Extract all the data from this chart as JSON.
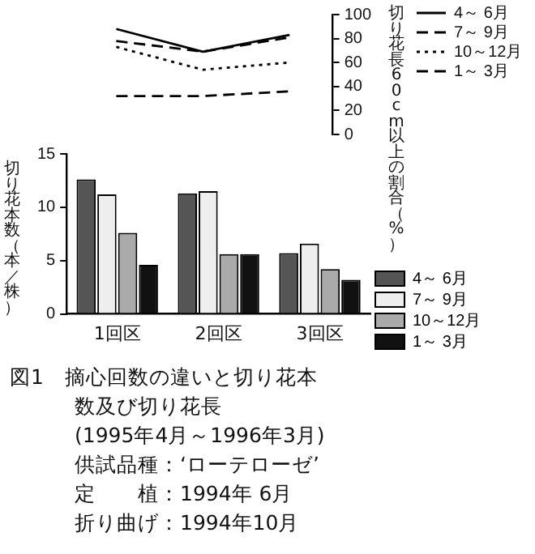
{
  "chart_data": [
    {
      "type": "line",
      "ylabel": "切り花長60cm以上の割合（%）",
      "categories": [
        null,
        null,
        null
      ],
      "series": [
        {
          "name": "4～ 6月",
          "color": "#000000",
          "line_style": "solid",
          "values": [
            88,
            69,
            83
          ]
        },
        {
          "name": "7～ 9月",
          "color": "#000000",
          "line_style": "dashed",
          "values": [
            32,
            32,
            36
          ]
        },
        {
          "name": "10～12月",
          "color": "#000000",
          "line_style": "dotted",
          "values": [
            73,
            54,
            60
          ]
        },
        {
          "name": "1～ 3月",
          "color": "#000000",
          "line_style": "dashed",
          "values": [
            78,
            69,
            81
          ]
        }
      ],
      "ylim": [
        0,
        100
      ],
      "yticks": [
        0,
        20,
        40,
        60,
        80,
        100
      ],
      "grid": false,
      "legend": "right",
      "tick_labels": "y"
    },
    {
      "type": "bar",
      "ylabel": "切り花本数（本／株）",
      "categories": [
        "1回区",
        "2回区",
        "3回区"
      ],
      "series": [
        {
          "name": "4～ 6月",
          "color": "#555555",
          "values": [
            12.6,
            11.3,
            5.7
          ]
        },
        {
          "name": "7～ 9月",
          "color": "#eeeeee",
          "values": [
            11.2,
            11.5,
            6.6
          ]
        },
        {
          "name": "10～12月",
          "color": "#aaaaaa",
          "values": [
            7.6,
            5.6,
            4.2
          ]
        },
        {
          "name": "1～ 3月",
          "color": "#111111",
          "values": [
            4.6,
            5.6,
            3.2
          ]
        }
      ],
      "ylim": [
        0,
        15
      ],
      "yticks": [
        0,
        5,
        10,
        15
      ],
      "grid": false,
      "legend": "right",
      "annotations": [
        "図1　摘心回数の違いと切り花本数及び切り花長",
        "(1995年4月～1996年3月)",
        "供試品種：‘ローテローゼ’",
        "定　　植：1994年 6月",
        "折り曲げ：1994年10月"
      ]
    }
  ]
}
